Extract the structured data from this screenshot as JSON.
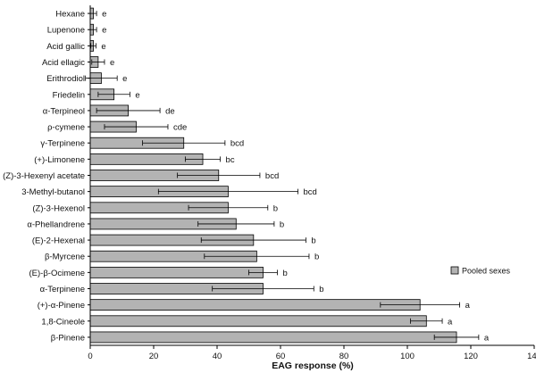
{
  "chart_data": {
    "type": "bar",
    "orientation": "horizontal",
    "title": "",
    "xlabel": "EAG response (%)",
    "ylabel": "",
    "xlim": [
      0,
      140
    ],
    "xticks": [
      0,
      20,
      40,
      60,
      80,
      100,
      120,
      140
    ],
    "grid": false,
    "legend_position": "right",
    "series": [
      {
        "name": "Pooled sexes",
        "color": "#b3b3b3",
        "values": [
          1,
          1,
          1,
          2.5,
          3.5,
          7.5,
          12,
          14.5,
          29.5,
          35.5,
          40.5,
          43.5,
          43.5,
          46,
          51.5,
          52.5,
          54.5,
          54.5,
          104,
          106,
          115.5
        ],
        "errors": [
          1,
          1,
          0.8,
          2,
          5,
          5,
          10,
          10,
          13,
          5.5,
          13,
          22,
          12.5,
          12,
          16.5,
          16.5,
          4.5,
          16,
          12.5,
          5,
          7
        ]
      }
    ],
    "categories": [
      "Hexane",
      "Lupenone",
      "Acid gallic",
      "Acid ellagic",
      "Erithrodiol",
      "Friedelin",
      "α-Terpineol",
      "ρ-cymene",
      "γ-Terpinene",
      "(+)-Limonene",
      "(Z)-3-Hexenyl acetate",
      "3-Methyl-butanol",
      "(Z)-3-Hexenol",
      "α-Phellandrene",
      "(E)-2-Hexenal",
      "β-Myrcene",
      "(E)-β-Ocimene",
      "α-Terpinene",
      "(+)-α-Pinene",
      "1,8-Cineole",
      "β-Pinene"
    ],
    "significance_letters": [
      "e",
      "e",
      "e",
      "e",
      "e",
      "e",
      "de",
      "cde",
      "bcd",
      "bc",
      "bcd",
      "bcd",
      "b",
      "b",
      "b",
      "b",
      "b",
      "b",
      "a",
      "a",
      "a"
    ]
  }
}
